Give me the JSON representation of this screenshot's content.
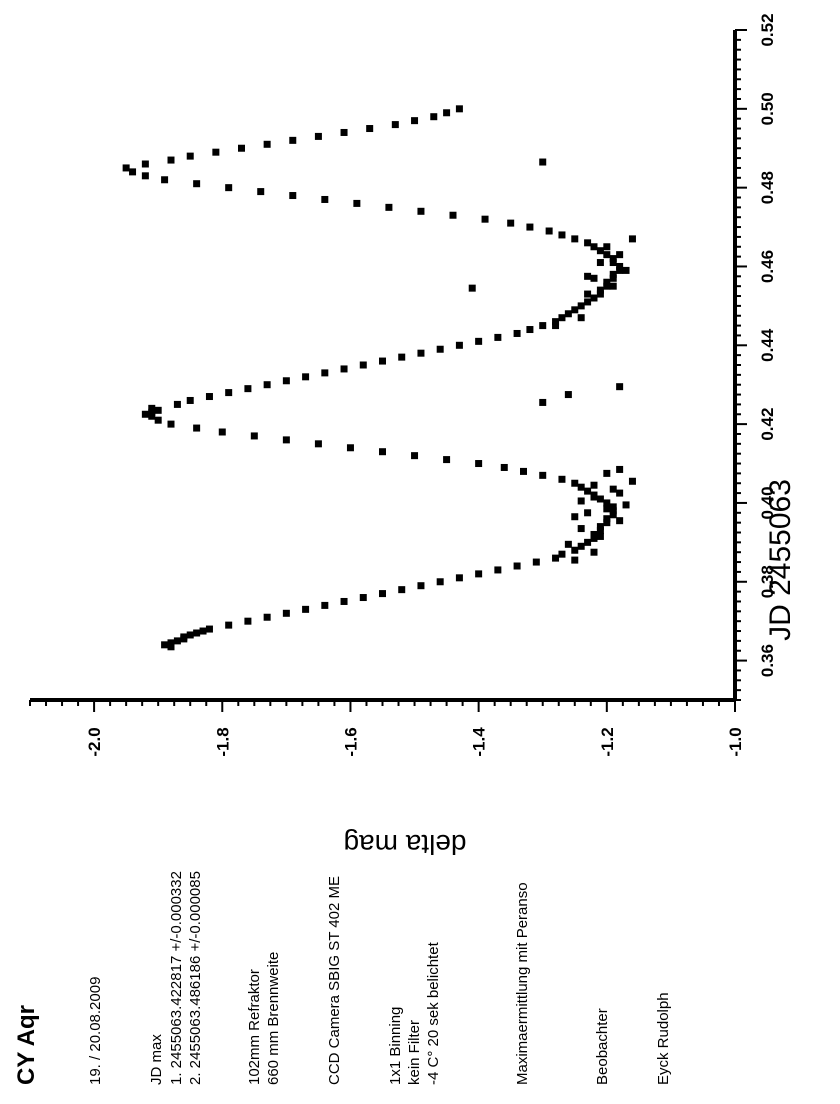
{
  "chart_data": {
    "type": "scatter",
    "title": "CY Aqr",
    "xlabel": "JD 2455063",
    "ylabel": "delta mag",
    "xlim": [
      0.35,
      0.52
    ],
    "ylim": [
      -2.1,
      -1.0
    ],
    "y_reversed": true,
    "grid": false,
    "x_ticks": [
      "0.36",
      "0.38",
      "0.40",
      "0.42",
      "0.44",
      "0.46",
      "0.48",
      "0.50",
      "0.52"
    ],
    "y_ticks": [
      "-2.0",
      "-1.8",
      "-1.6",
      "-1.4",
      "-1.2",
      "-1.0"
    ],
    "marker_color": "#000000",
    "series": [
      {
        "x": [
          0.3635,
          0.364,
          0.3645,
          0.365,
          0.3655,
          0.366,
          0.3665,
          0.367,
          0.3675,
          0.368,
          0.369,
          0.37,
          0.371,
          0.372,
          0.373,
          0.374,
          0.375,
          0.376,
          0.377,
          0.378,
          0.379,
          0.38,
          0.381,
          0.382,
          0.383,
          0.384,
          0.385,
          0.386,
          0.387,
          0.388,
          0.389,
          0.39,
          0.391,
          0.392,
          0.393,
          0.394,
          0.395,
          0.396,
          0.397,
          0.398,
          0.399,
          0.4,
          0.401,
          0.402,
          0.403,
          0.404,
          0.405,
          0.406,
          0.407,
          0.408,
          0.409,
          0.41,
          0.411,
          0.412,
          0.413,
          0.414,
          0.415,
          0.416,
          0.417,
          0.418,
          0.419,
          0.42,
          0.421,
          0.422,
          0.4225,
          0.423,
          0.4235,
          0.424,
          0.3855,
          0.3875,
          0.3895,
          0.3915,
          0.3935,
          0.3955,
          0.3975,
          0.3995,
          0.4015,
          0.4035,
          0.4055,
          0.4075,
          0.4085,
          0.3965,
          0.3985,
          0.4005,
          0.4025,
          0.4045
        ],
        "y": [
          -1.88,
          -1.89,
          -1.88,
          -1.87,
          -1.86,
          -1.86,
          -1.85,
          -1.84,
          -1.83,
          -1.82,
          -1.79,
          -1.76,
          -1.73,
          -1.7,
          -1.67,
          -1.64,
          -1.61,
          -1.58,
          -1.55,
          -1.52,
          -1.49,
          -1.46,
          -1.43,
          -1.4,
          -1.37,
          -1.34,
          -1.31,
          -1.28,
          -1.27,
          -1.25,
          -1.24,
          -1.23,
          -1.22,
          -1.22,
          -1.21,
          -1.21,
          -1.2,
          -1.2,
          -1.19,
          -1.19,
          -1.19,
          -1.2,
          -1.21,
          -1.22,
          -1.23,
          -1.24,
          -1.25,
          -1.27,
          -1.3,
          -1.33,
          -1.36,
          -1.4,
          -1.45,
          -1.5,
          -1.55,
          -1.6,
          -1.65,
          -1.7,
          -1.75,
          -1.8,
          -1.84,
          -1.88,
          -1.9,
          -1.91,
          -1.92,
          -1.91,
          -1.9,
          -1.91,
          -1.25,
          -1.22,
          -1.26,
          -1.21,
          -1.24,
          -1.18,
          -1.23,
          -1.17,
          -1.22,
          -1.19,
          -1.16,
          -1.2,
          -1.18,
          -1.25,
          -1.2,
          -1.24,
          -1.18,
          -1.22
        ]
      },
      {
        "x": [
          0.425,
          0.426,
          0.427,
          0.428,
          0.429,
          0.43,
          0.431,
          0.432,
          0.433,
          0.434,
          0.435,
          0.436,
          0.437,
          0.438,
          0.439,
          0.44,
          0.441,
          0.442,
          0.443,
          0.444,
          0.445,
          0.446,
          0.447,
          0.448,
          0.449,
          0.45,
          0.451,
          0.452,
          0.453,
          0.454,
          0.455,
          0.456,
          0.457,
          0.458,
          0.459,
          0.46,
          0.461,
          0.462,
          0.463,
          0.464,
          0.465,
          0.466,
          0.467,
          0.468,
          0.469,
          0.47,
          0.471,
          0.472,
          0.473,
          0.474,
          0.475,
          0.476,
          0.477,
          0.478,
          0.479,
          0.48,
          0.481,
          0.482,
          0.483,
          0.484,
          0.485,
          0.486,
          0.487,
          0.488,
          0.489,
          0.49,
          0.491,
          0.492,
          0.493,
          0.494,
          0.495,
          0.496,
          0.497,
          0.498,
          0.499,
          0.5,
          0.4255,
          0.4275,
          0.445,
          0.447,
          0.453,
          0.455,
          0.457,
          0.459,
          0.461,
          0.463,
          0.465,
          0.467,
          0.4865,
          0.4545,
          0.4575,
          0.4295
        ],
        "y": [
          -1.87,
          -1.85,
          -1.82,
          -1.79,
          -1.76,
          -1.73,
          -1.7,
          -1.67,
          -1.64,
          -1.61,
          -1.58,
          -1.55,
          -1.52,
          -1.49,
          -1.46,
          -1.43,
          -1.4,
          -1.37,
          -1.34,
          -1.32,
          -1.3,
          -1.28,
          -1.27,
          -1.26,
          -1.25,
          -1.24,
          -1.23,
          -1.22,
          -1.21,
          -1.21,
          -1.2,
          -1.2,
          -1.19,
          -1.19,
          -1.18,
          -1.18,
          -1.19,
          -1.19,
          -1.2,
          -1.21,
          -1.22,
          -1.23,
          -1.25,
          -1.27,
          -1.29,
          -1.32,
          -1.35,
          -1.39,
          -1.44,
          -1.49,
          -1.54,
          -1.59,
          -1.64,
          -1.69,
          -1.74,
          -1.79,
          -1.84,
          -1.89,
          -1.92,
          -1.94,
          -1.95,
          -1.92,
          -1.88,
          -1.85,
          -1.81,
          -1.77,
          -1.73,
          -1.69,
          -1.65,
          -1.61,
          -1.57,
          -1.53,
          -1.5,
          -1.47,
          -1.45,
          -1.43,
          -1.3,
          -1.26,
          -1.28,
          -1.24,
          -1.23,
          -1.19,
          -1.22,
          -1.17,
          -1.21,
          -1.18,
          -1.2,
          -1.16,
          -1.3,
          -1.41,
          -1.23,
          -1.18
        ]
      }
    ]
  },
  "info": {
    "star": "CY Aqr",
    "date": "19. / 20.08.2009",
    "jd_max_heading": "JD max",
    "jd_max_1": "1. 2455063.422817 +/-0.000332",
    "jd_max_2": "2. 2455063.486186 +/-0.000085",
    "telescope_1": "102mm Refraktor",
    "telescope_2": "660 mm Brennweite",
    "camera": "CCD Camera SBIG ST 402 ME",
    "binning": "1x1 Binning",
    "filter": "kein Filter",
    "exposure": "-4 C° 20 sek belichtet",
    "method": "Maximaermittlung mit Peranso",
    "observer_heading": "Beobachter",
    "observer": "Eyck Rudolph"
  }
}
